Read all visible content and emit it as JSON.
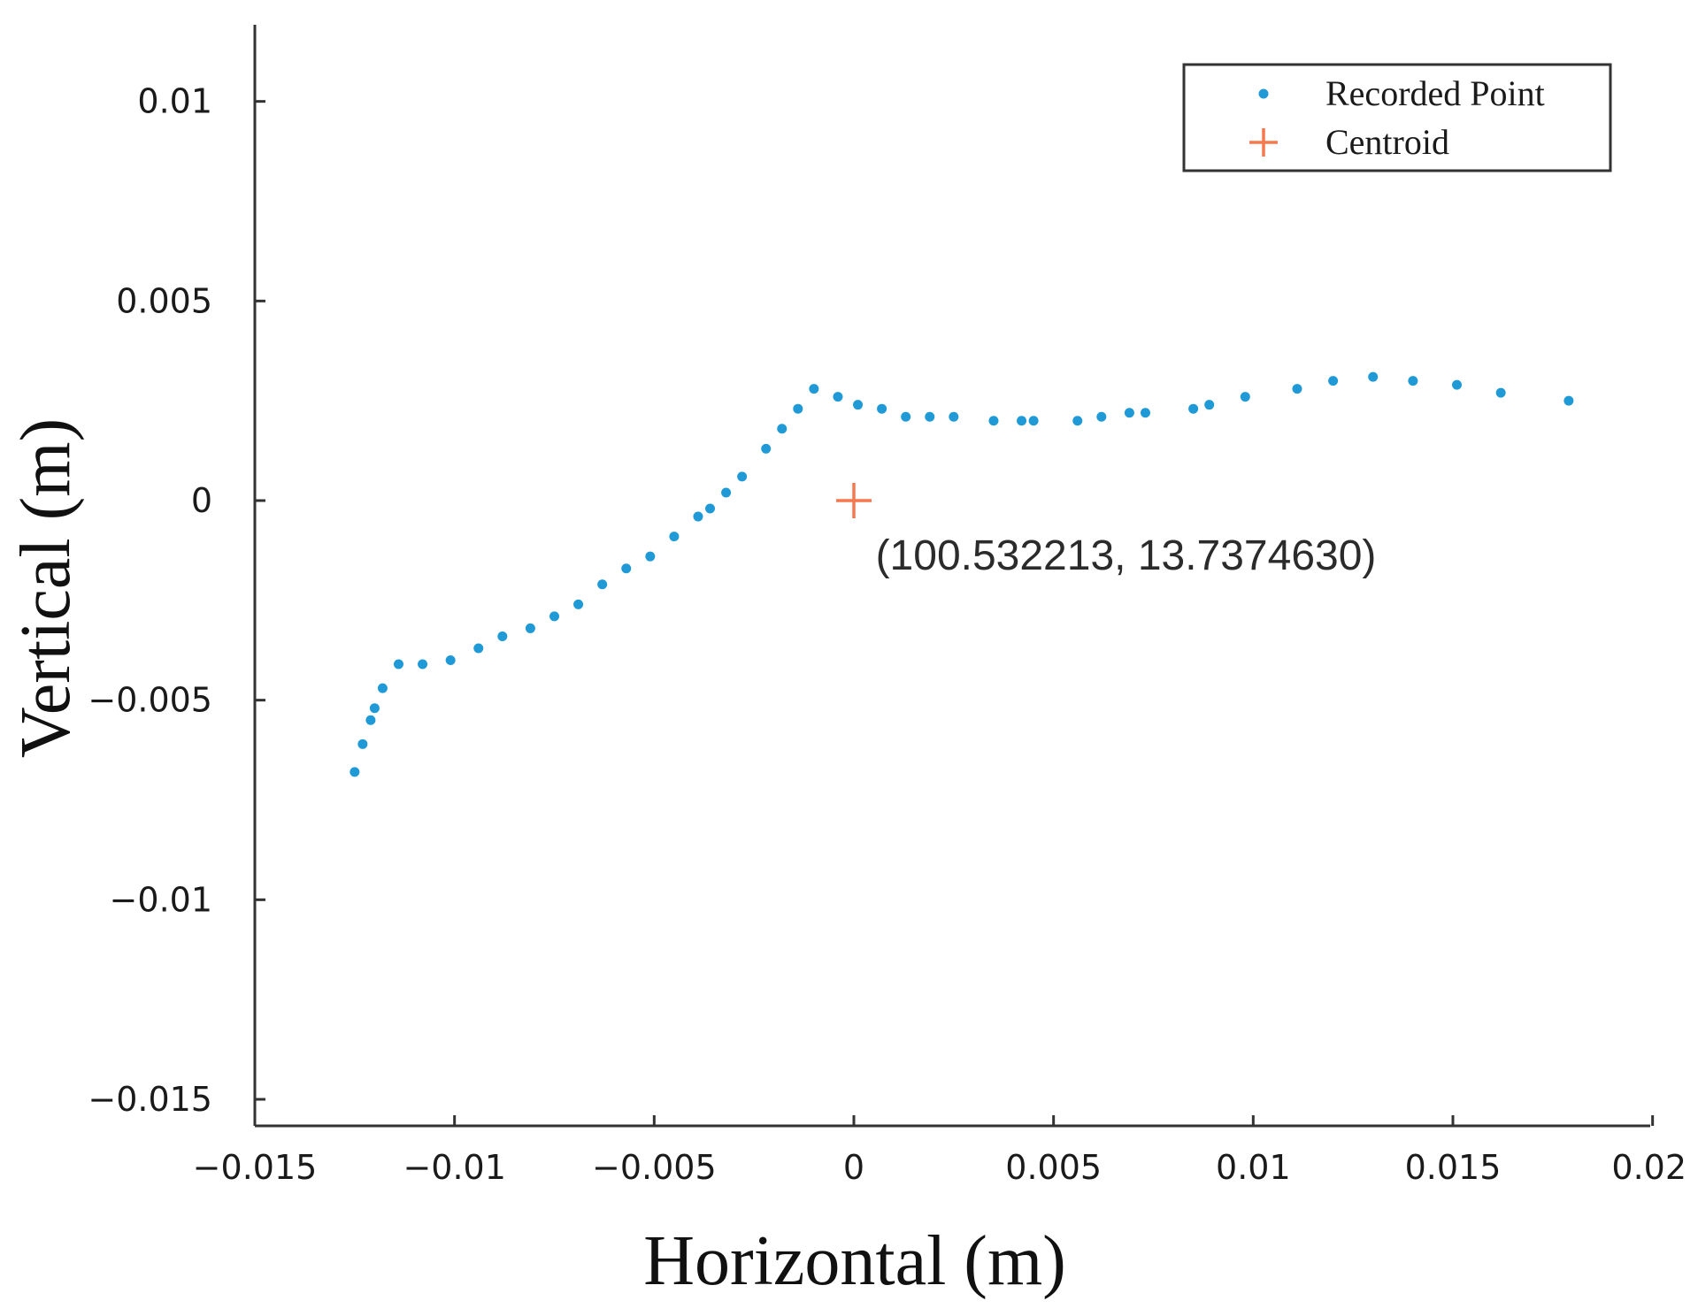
{
  "chart_data": {
    "type": "scatter",
    "title": "",
    "xlabel": "Horizontal (m)",
    "ylabel": "Vertical (m)",
    "xlim": [
      -0.015,
      0.02
    ],
    "ylim": [
      -0.015,
      0.012
    ],
    "xticks": [
      -0.015,
      -0.01,
      -0.005,
      0,
      0.005,
      0.01,
      0.015,
      0.02
    ],
    "xtick_labels": [
      "−0.015",
      "−0.01",
      "−0.005",
      "0",
      "0.005",
      "0.01",
      "0.015",
      "0.02"
    ],
    "yticks": [
      0.01,
      0.005,
      0,
      -0.005,
      -0.01,
      -0.015
    ],
    "ytick_labels": [
      "0.01",
      "0.005",
      "0",
      "−0.005",
      "−0.01",
      "−0.015"
    ],
    "grid": false,
    "legend_position": "top-right",
    "series": [
      {
        "name": "Recorded Point",
        "marker": "dot",
        "color": "#1f9ad6",
        "points": [
          [
            -0.0125,
            -0.0068
          ],
          [
            -0.0123,
            -0.0061
          ],
          [
            -0.0121,
            -0.0055
          ],
          [
            -0.012,
            -0.0052
          ],
          [
            -0.0118,
            -0.0047
          ],
          [
            -0.0114,
            -0.0041
          ],
          [
            -0.0108,
            -0.0041
          ],
          [
            -0.0101,
            -0.004
          ],
          [
            -0.0094,
            -0.0037
          ],
          [
            -0.0088,
            -0.0034
          ],
          [
            -0.0081,
            -0.0032
          ],
          [
            -0.0075,
            -0.0029
          ],
          [
            -0.0069,
            -0.0026
          ],
          [
            -0.0063,
            -0.0021
          ],
          [
            -0.0057,
            -0.0017
          ],
          [
            -0.0051,
            -0.0014
          ],
          [
            -0.0045,
            -0.0009
          ],
          [
            -0.0039,
            -0.0004
          ],
          [
            -0.0036,
            -0.0002
          ],
          [
            -0.0032,
            0.0002
          ],
          [
            -0.0028,
            0.0006
          ],
          [
            -0.0022,
            0.0013
          ],
          [
            -0.0018,
            0.0018
          ],
          [
            -0.0014,
            0.0023
          ],
          [
            -0.001,
            0.0028
          ],
          [
            -0.0004,
            0.0026
          ],
          [
            0.0001,
            0.0024
          ],
          [
            0.0007,
            0.0023
          ],
          [
            0.0013,
            0.0021
          ],
          [
            0.0019,
            0.0021
          ],
          [
            0.0025,
            0.0021
          ],
          [
            0.0035,
            0.002
          ],
          [
            0.0042,
            0.002
          ],
          [
            0.0045,
            0.002
          ],
          [
            0.0056,
            0.002
          ],
          [
            0.0062,
            0.0021
          ],
          [
            0.0069,
            0.0022
          ],
          [
            0.0073,
            0.0022
          ],
          [
            0.0085,
            0.0023
          ],
          [
            0.0089,
            0.0024
          ],
          [
            0.0098,
            0.0026
          ],
          [
            0.0111,
            0.0028
          ],
          [
            0.012,
            0.003
          ],
          [
            0.013,
            0.0031
          ],
          [
            0.014,
            0.003
          ],
          [
            0.0151,
            0.0029
          ],
          [
            0.0162,
            0.0027
          ],
          [
            0.0179,
            0.0025
          ]
        ]
      },
      {
        "name": "Centroid",
        "marker": "plus",
        "color": "#f4794f",
        "points": [
          [
            0.0,
            0.0
          ]
        ]
      }
    ],
    "annotations": [
      {
        "text": "(100.532213, 13.7374630)",
        "x": 0.0005,
        "y": -0.0008
      }
    ]
  }
}
